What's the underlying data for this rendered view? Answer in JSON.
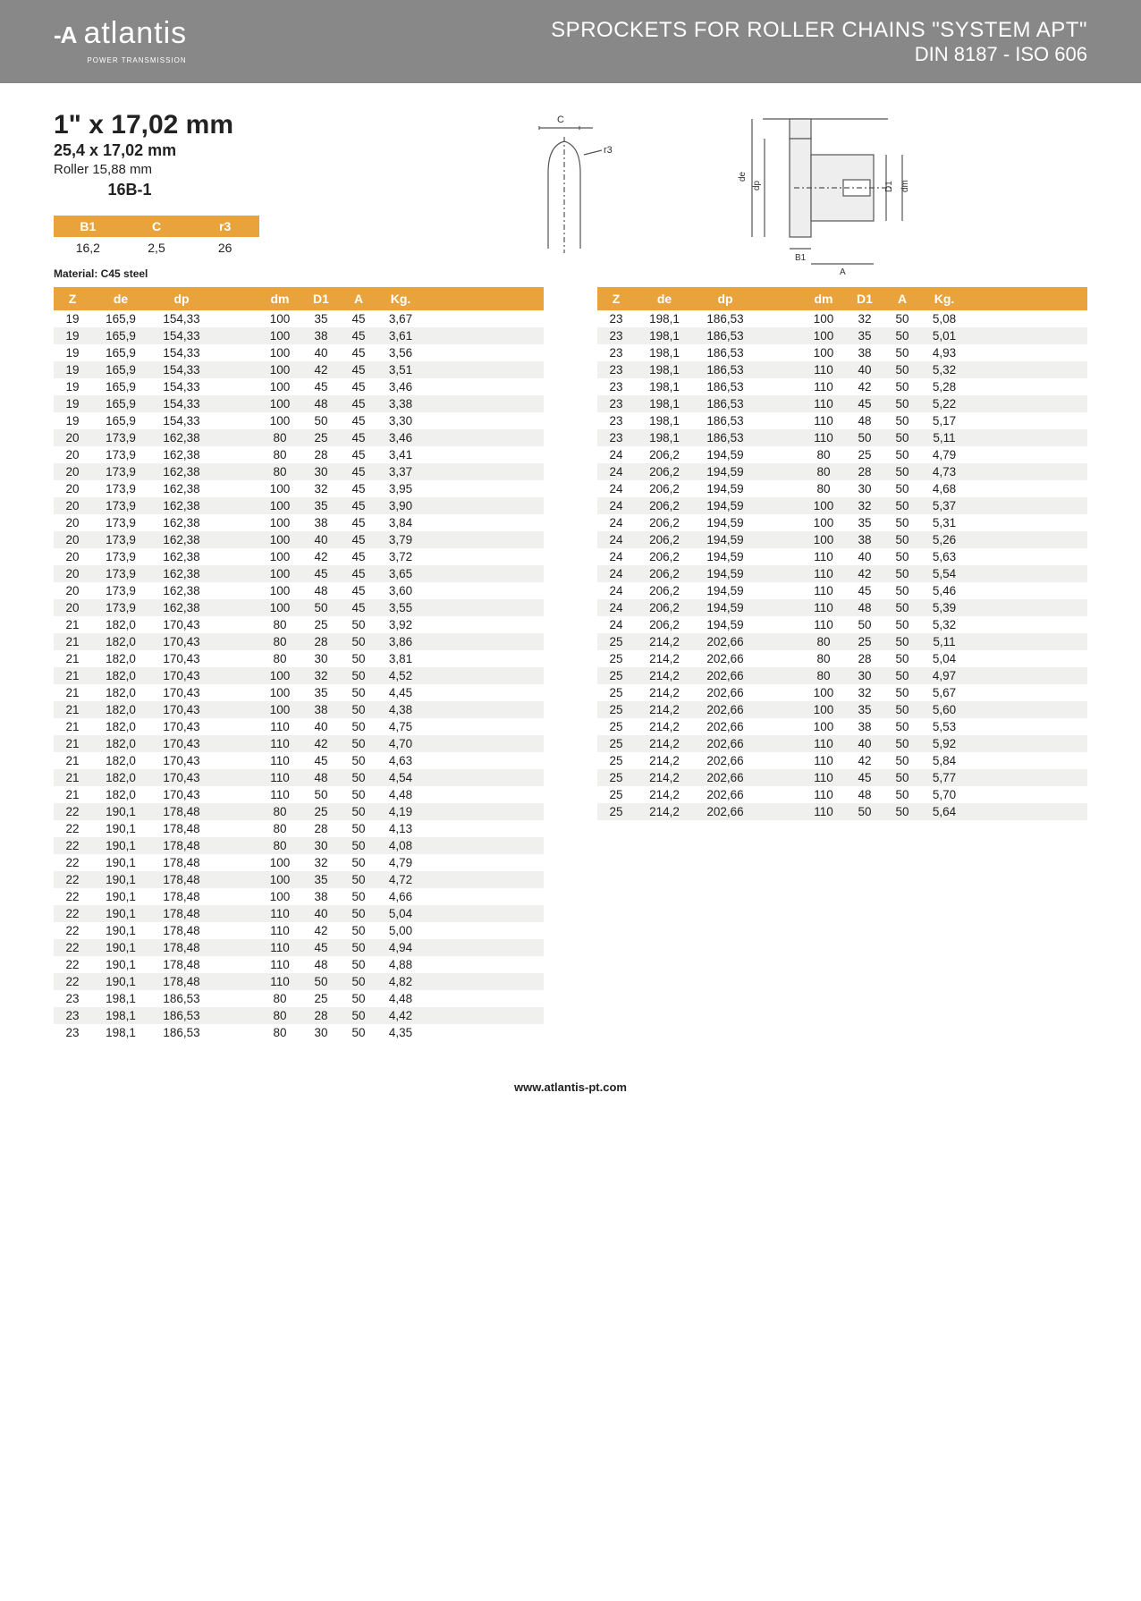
{
  "header": {
    "brand": "atlantis",
    "brand_sub": "POWER TRANSMISSION",
    "title_line1": "SPROCKETS FOR ROLLER CHAINS \"SYSTEM APT\"",
    "title_line2": "DIN 8187 - ISO 606"
  },
  "spec": {
    "title": "1\" x 17,02 mm",
    "sub1": "25,4 x 17,02 mm",
    "sub2": "Roller 15,88 mm",
    "code": "16B-1"
  },
  "mini_table": {
    "columns": [
      "B1",
      "C",
      "r3"
    ],
    "row": [
      "16,2",
      "2,5",
      "26"
    ]
  },
  "material_label": "Material: C45 steel",
  "diagram_labels": {
    "c": "C",
    "r3": "r3",
    "de": "de",
    "dp": "dp",
    "dm": "dm",
    "d1": "D1",
    "b1": "B1",
    "a": "A"
  },
  "table_columns": [
    "Z",
    "de",
    "dp",
    "",
    "dm",
    "D1",
    "A",
    "Kg."
  ],
  "table_left": [
    [
      "19",
      "165,9",
      "154,33",
      "",
      "100",
      "35",
      "45",
      "3,67"
    ],
    [
      "19",
      "165,9",
      "154,33",
      "",
      "100",
      "38",
      "45",
      "3,61"
    ],
    [
      "19",
      "165,9",
      "154,33",
      "",
      "100",
      "40",
      "45",
      "3,56"
    ],
    [
      "19",
      "165,9",
      "154,33",
      "",
      "100",
      "42",
      "45",
      "3,51"
    ],
    [
      "19",
      "165,9",
      "154,33",
      "",
      "100",
      "45",
      "45",
      "3,46"
    ],
    [
      "19",
      "165,9",
      "154,33",
      "",
      "100",
      "48",
      "45",
      "3,38"
    ],
    [
      "19",
      "165,9",
      "154,33",
      "",
      "100",
      "50",
      "45",
      "3,30"
    ],
    [
      "20",
      "173,9",
      "162,38",
      "",
      "80",
      "25",
      "45",
      "3,46"
    ],
    [
      "20",
      "173,9",
      "162,38",
      "",
      "80",
      "28",
      "45",
      "3,41"
    ],
    [
      "20",
      "173,9",
      "162,38",
      "",
      "80",
      "30",
      "45",
      "3,37"
    ],
    [
      "20",
      "173,9",
      "162,38",
      "",
      "100",
      "32",
      "45",
      "3,95"
    ],
    [
      "20",
      "173,9",
      "162,38",
      "",
      "100",
      "35",
      "45",
      "3,90"
    ],
    [
      "20",
      "173,9",
      "162,38",
      "",
      "100",
      "38",
      "45",
      "3,84"
    ],
    [
      "20",
      "173,9",
      "162,38",
      "",
      "100",
      "40",
      "45",
      "3,79"
    ],
    [
      "20",
      "173,9",
      "162,38",
      "",
      "100",
      "42",
      "45",
      "3,72"
    ],
    [
      "20",
      "173,9",
      "162,38",
      "",
      "100",
      "45",
      "45",
      "3,65"
    ],
    [
      "20",
      "173,9",
      "162,38",
      "",
      "100",
      "48",
      "45",
      "3,60"
    ],
    [
      "20",
      "173,9",
      "162,38",
      "",
      "100",
      "50",
      "45",
      "3,55"
    ],
    [
      "21",
      "182,0",
      "170,43",
      "",
      "80",
      "25",
      "50",
      "3,92"
    ],
    [
      "21",
      "182,0",
      "170,43",
      "",
      "80",
      "28",
      "50",
      "3,86"
    ],
    [
      "21",
      "182,0",
      "170,43",
      "",
      "80",
      "30",
      "50",
      "3,81"
    ],
    [
      "21",
      "182,0",
      "170,43",
      "",
      "100",
      "32",
      "50",
      "4,52"
    ],
    [
      "21",
      "182,0",
      "170,43",
      "",
      "100",
      "35",
      "50",
      "4,45"
    ],
    [
      "21",
      "182,0",
      "170,43",
      "",
      "100",
      "38",
      "50",
      "4,38"
    ],
    [
      "21",
      "182,0",
      "170,43",
      "",
      "110",
      "40",
      "50",
      "4,75"
    ],
    [
      "21",
      "182,0",
      "170,43",
      "",
      "110",
      "42",
      "50",
      "4,70"
    ],
    [
      "21",
      "182,0",
      "170,43",
      "",
      "110",
      "45",
      "50",
      "4,63"
    ],
    [
      "21",
      "182,0",
      "170,43",
      "",
      "110",
      "48",
      "50",
      "4,54"
    ],
    [
      "21",
      "182,0",
      "170,43",
      "",
      "110",
      "50",
      "50",
      "4,48"
    ],
    [
      "22",
      "190,1",
      "178,48",
      "",
      "80",
      "25",
      "50",
      "4,19"
    ],
    [
      "22",
      "190,1",
      "178,48",
      "",
      "80",
      "28",
      "50",
      "4,13"
    ],
    [
      "22",
      "190,1",
      "178,48",
      "",
      "80",
      "30",
      "50",
      "4,08"
    ],
    [
      "22",
      "190,1",
      "178,48",
      "",
      "100",
      "32",
      "50",
      "4,79"
    ],
    [
      "22",
      "190,1",
      "178,48",
      "",
      "100",
      "35",
      "50",
      "4,72"
    ],
    [
      "22",
      "190,1",
      "178,48",
      "",
      "100",
      "38",
      "50",
      "4,66"
    ],
    [
      "22",
      "190,1",
      "178,48",
      "",
      "110",
      "40",
      "50",
      "5,04"
    ],
    [
      "22",
      "190,1",
      "178,48",
      "",
      "110",
      "42",
      "50",
      "5,00"
    ],
    [
      "22",
      "190,1",
      "178,48",
      "",
      "110",
      "45",
      "50",
      "4,94"
    ],
    [
      "22",
      "190,1",
      "178,48",
      "",
      "110",
      "48",
      "50",
      "4,88"
    ],
    [
      "22",
      "190,1",
      "178,48",
      "",
      "110",
      "50",
      "50",
      "4,82"
    ],
    [
      "23",
      "198,1",
      "186,53",
      "",
      "80",
      "25",
      "50",
      "4,48"
    ],
    [
      "23",
      "198,1",
      "186,53",
      "",
      "80",
      "28",
      "50",
      "4,42"
    ],
    [
      "23",
      "198,1",
      "186,53",
      "",
      "80",
      "30",
      "50",
      "4,35"
    ]
  ],
  "table_right": [
    [
      "23",
      "198,1",
      "186,53",
      "",
      "100",
      "32",
      "50",
      "5,08"
    ],
    [
      "23",
      "198,1",
      "186,53",
      "",
      "100",
      "35",
      "50",
      "5,01"
    ],
    [
      "23",
      "198,1",
      "186,53",
      "",
      "100",
      "38",
      "50",
      "4,93"
    ],
    [
      "23",
      "198,1",
      "186,53",
      "",
      "110",
      "40",
      "50",
      "5,32"
    ],
    [
      "23",
      "198,1",
      "186,53",
      "",
      "110",
      "42",
      "50",
      "5,28"
    ],
    [
      "23",
      "198,1",
      "186,53",
      "",
      "110",
      "45",
      "50",
      "5,22"
    ],
    [
      "23",
      "198,1",
      "186,53",
      "",
      "110",
      "48",
      "50",
      "5,17"
    ],
    [
      "23",
      "198,1",
      "186,53",
      "",
      "110",
      "50",
      "50",
      "5,11"
    ],
    [
      "24",
      "206,2",
      "194,59",
      "",
      "80",
      "25",
      "50",
      "4,79"
    ],
    [
      "24",
      "206,2",
      "194,59",
      "",
      "80",
      "28",
      "50",
      "4,73"
    ],
    [
      "24",
      "206,2",
      "194,59",
      "",
      "80",
      "30",
      "50",
      "4,68"
    ],
    [
      "24",
      "206,2",
      "194,59",
      "",
      "100",
      "32",
      "50",
      "5,37"
    ],
    [
      "24",
      "206,2",
      "194,59",
      "",
      "100",
      "35",
      "50",
      "5,31"
    ],
    [
      "24",
      "206,2",
      "194,59",
      "",
      "100",
      "38",
      "50",
      "5,26"
    ],
    [
      "24",
      "206,2",
      "194,59",
      "",
      "110",
      "40",
      "50",
      "5,63"
    ],
    [
      "24",
      "206,2",
      "194,59",
      "",
      "110",
      "42",
      "50",
      "5,54"
    ],
    [
      "24",
      "206,2",
      "194,59",
      "",
      "110",
      "45",
      "50",
      "5,46"
    ],
    [
      "24",
      "206,2",
      "194,59",
      "",
      "110",
      "48",
      "50",
      "5,39"
    ],
    [
      "24",
      "206,2",
      "194,59",
      "",
      "110",
      "50",
      "50",
      "5,32"
    ],
    [
      "25",
      "214,2",
      "202,66",
      "",
      "80",
      "25",
      "50",
      "5,11"
    ],
    [
      "25",
      "214,2",
      "202,66",
      "",
      "80",
      "28",
      "50",
      "5,04"
    ],
    [
      "25",
      "214,2",
      "202,66",
      "",
      "80",
      "30",
      "50",
      "4,97"
    ],
    [
      "25",
      "214,2",
      "202,66",
      "",
      "100",
      "32",
      "50",
      "5,67"
    ],
    [
      "25",
      "214,2",
      "202,66",
      "",
      "100",
      "35",
      "50",
      "5,60"
    ],
    [
      "25",
      "214,2",
      "202,66",
      "",
      "100",
      "38",
      "50",
      "5,53"
    ],
    [
      "25",
      "214,2",
      "202,66",
      "",
      "110",
      "40",
      "50",
      "5,92"
    ],
    [
      "25",
      "214,2",
      "202,66",
      "",
      "110",
      "42",
      "50",
      "5,84"
    ],
    [
      "25",
      "214,2",
      "202,66",
      "",
      "110",
      "45",
      "50",
      "5,77"
    ],
    [
      "25",
      "214,2",
      "202,66",
      "",
      "110",
      "48",
      "50",
      "5,70"
    ],
    [
      "25",
      "214,2",
      "202,66",
      "",
      "110",
      "50",
      "50",
      "5,64"
    ]
  ],
  "footer": "www.atlantis-pt.com",
  "colors": {
    "header_bg": "#888888",
    "accent": "#e8a33d",
    "row_alt": "#f0f0ee"
  }
}
